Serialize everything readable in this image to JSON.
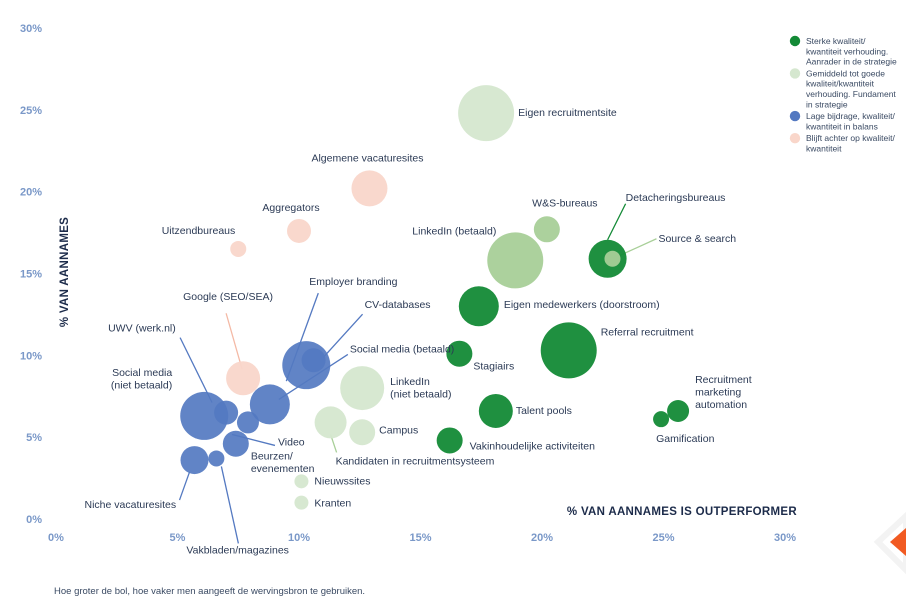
{
  "chart_data": {
    "type": "scatter",
    "xlabel": "% VAN AANNAMES IS OUTPERFORMER",
    "ylabel": "% VAN AANNAMES",
    "xlim": [
      0,
      30
    ],
    "ylim": [
      0,
      30
    ],
    "xticks": [
      "0%",
      "5%",
      "10%",
      "15%",
      "20%",
      "25%",
      "30%"
    ],
    "yticks": [
      "0%",
      "5%",
      "10%",
      "15%",
      "20%",
      "25%",
      "30%"
    ],
    "grid": false,
    "legend_position": "top-right",
    "footnote": "Hoe groter de bol, hoe vaker men aangeeft de wervingsbron te gebruiken.",
    "colors": {
      "strong": "#138a36",
      "average": "#d5e7cf",
      "average_mid": "#a8cf98",
      "low": "#5479c1",
      "behind": "#f9d6ca"
    },
    "legend": [
      {
        "group": "strong",
        "lines": [
          "Sterke kwaliteit/",
          "kwantiteit verhouding.",
          "Aanrader in de strategie"
        ]
      },
      {
        "group": "average",
        "lines": [
          "Gemiddeld tot goede",
          "kwaliteit/kwantiteit",
          "verhouding. Fundament",
          "in strategie"
        ]
      },
      {
        "group": "low",
        "lines": [
          "Lage bijdrage, kwaliteit/",
          "kwantiteit in balans"
        ]
      },
      {
        "group": "behind",
        "lines": [
          "Blijft achter op kwaliteit/",
          "kwantiteit"
        ]
      }
    ],
    "series": [
      {
        "name": "Eigen recruitmentsite",
        "x": 17.7,
        "y": 24.8,
        "size": 28,
        "group": "average"
      },
      {
        "name": "Algemene vacaturesites",
        "x": 12.9,
        "y": 20.2,
        "size": 18,
        "group": "behind"
      },
      {
        "name": "Aggregators",
        "x": 10.0,
        "y": 17.6,
        "size": 12,
        "group": "behind"
      },
      {
        "name": "Uitzendbureaus",
        "x": 7.5,
        "y": 16.5,
        "size": 8,
        "group": "behind"
      },
      {
        "name": "W&S-bureaus",
        "x": 20.2,
        "y": 17.7,
        "size": 13,
        "group": "average_mid"
      },
      {
        "name": "LinkedIn (betaald)",
        "x": 18.9,
        "y": 15.8,
        "size": 28,
        "group": "average_mid"
      },
      {
        "name": "Detacheringsbureaus",
        "x": 22.7,
        "y": 15.9,
        "size": 19,
        "group": "strong"
      },
      {
        "name": "Source & search",
        "x": 22.9,
        "y": 15.9,
        "size": 8,
        "group": "average_mid"
      },
      {
        "name": "Eigen medewerkers (doorstroom)",
        "x": 17.4,
        "y": 13.0,
        "size": 20,
        "group": "strong"
      },
      {
        "name": "Referral recruitment",
        "x": 21.1,
        "y": 10.3,
        "size": 28,
        "group": "strong"
      },
      {
        "name": "Stagiairs",
        "x": 16.6,
        "y": 10.1,
        "size": 13,
        "group": "strong"
      },
      {
        "name": "Recruitment marketing automation",
        "x": 25.6,
        "y": 6.6,
        "size": 11,
        "group": "strong"
      },
      {
        "name": "Gamification",
        "x": 24.9,
        "y": 6.1,
        "size": 8,
        "group": "strong"
      },
      {
        "name": "Talent pools",
        "x": 18.1,
        "y": 6.6,
        "size": 17,
        "group": "strong"
      },
      {
        "name": "Vakinhoudelijke activiteiten",
        "x": 16.2,
        "y": 4.8,
        "size": 13,
        "group": "strong"
      },
      {
        "name": "LinkedIn (niet betaald)",
        "x": 12.6,
        "y": 8.0,
        "size": 22,
        "group": "average"
      },
      {
        "name": "Campus",
        "x": 12.6,
        "y": 5.3,
        "size": 13,
        "group": "average"
      },
      {
        "name": "Kandidaten in recruitmentsysteem",
        "x": 11.3,
        "y": 5.9,
        "size": 16,
        "group": "average"
      },
      {
        "name": "Nieuwssites",
        "x": 10.1,
        "y": 2.3,
        "size": 7,
        "group": "average"
      },
      {
        "name": "Kranten",
        "x": 10.1,
        "y": 1.0,
        "size": 7,
        "group": "average"
      },
      {
        "name": "Google (SEO/SEA)",
        "x": 7.7,
        "y": 8.6,
        "size": 17,
        "group": "behind"
      },
      {
        "name": "Employer branding",
        "x": 10.3,
        "y": 9.4,
        "size": 24,
        "group": "low"
      },
      {
        "name": "CV-databases",
        "x": 10.6,
        "y": 9.7,
        "size": 12,
        "group": "low"
      },
      {
        "name": "UWV (werk.nl)",
        "x": 7.0,
        "y": 6.5,
        "size": 12,
        "group": "low"
      },
      {
        "name": "Social media (niet betaald)",
        "x": 6.1,
        "y": 6.3,
        "size": 24,
        "group": "low"
      },
      {
        "name": "Social media (betaald)",
        "x": 8.8,
        "y": 7.0,
        "size": 20,
        "group": "low"
      },
      {
        "name": "Video",
        "x": 7.9,
        "y": 5.9,
        "size": 11,
        "group": "low"
      },
      {
        "name": "Beurzen/ evenementen",
        "x": 7.4,
        "y": 4.6,
        "size": 13,
        "group": "low"
      },
      {
        "name": "Niche vacaturesites",
        "x": 5.7,
        "y": 3.6,
        "size": 14,
        "group": "low"
      },
      {
        "name": "Vakbladen/magazines",
        "x": 6.6,
        "y": 3.7,
        "size": 8,
        "group": "low"
      }
    ],
    "labels": [
      {
        "point": "Eigen recruitmentsite",
        "lines": [
          "Eigen recruitmentsite"
        ]
      },
      {
        "point": "Algemene vacaturesites",
        "lines": [
          "Algemene vacaturesites"
        ]
      },
      {
        "point": "Aggregators",
        "lines": [
          "Aggregators"
        ]
      },
      {
        "point": "Uitzendbureaus",
        "lines": [
          "Uitzendbureaus"
        ]
      },
      {
        "point": "W&S-bureaus",
        "lines": [
          "W&S-bureaus"
        ]
      },
      {
        "point": "LinkedIn (betaald)",
        "lines": [
          "LinkedIn (betaald)"
        ]
      },
      {
        "point": "Detacheringsbureaus",
        "lines": [
          "Detacheringsbureaus"
        ]
      },
      {
        "point": "Source & search",
        "lines": [
          "Source & search"
        ]
      },
      {
        "point": "Eigen medewerkers (doorstroom)",
        "lines": [
          "Eigen medewerkers (doorstroom)"
        ]
      },
      {
        "point": "Referral recruitment",
        "lines": [
          "Referral recruitment"
        ]
      },
      {
        "point": "Stagiairs",
        "lines": [
          "Stagiairs"
        ]
      },
      {
        "point": "Recruitment marketing automation",
        "lines": [
          "Recruitment",
          "marketing",
          "automation"
        ]
      },
      {
        "point": "Gamification",
        "lines": [
          "Gamification"
        ]
      },
      {
        "point": "Talent pools",
        "lines": [
          "Talent pools"
        ]
      },
      {
        "point": "Vakinhoudelijke activiteiten",
        "lines": [
          "Vakinhoudelijke activiteiten"
        ]
      },
      {
        "point": "LinkedIn (niet betaald)",
        "lines": [
          "LinkedIn",
          "(niet betaald)"
        ]
      },
      {
        "point": "Campus",
        "lines": [
          "Campus"
        ]
      },
      {
        "point": "Kandidaten in recruitmentsysteem",
        "lines": [
          "Kandidaten in recruitmentsysteem"
        ]
      },
      {
        "point": "Nieuwssites",
        "lines": [
          "Nieuwssites"
        ]
      },
      {
        "point": "Kranten",
        "lines": [
          "Kranten"
        ]
      },
      {
        "point": "Google (SEO/SEA)",
        "lines": [
          "Google (SEO/SEA)"
        ]
      },
      {
        "point": "Employer branding",
        "lines": [
          "Employer branding"
        ]
      },
      {
        "point": "CV-databases",
        "lines": [
          "CV-databases"
        ]
      },
      {
        "point": "UWV (werk.nl)",
        "lines": [
          "UWV (werk.nl)"
        ]
      },
      {
        "point": "Social media (niet betaald)",
        "lines": [
          "Social media",
          "(niet betaald)"
        ]
      },
      {
        "point": "Social media (betaald)",
        "lines": [
          "Social media (betaald)"
        ]
      },
      {
        "point": "Video",
        "lines": [
          "Video"
        ]
      },
      {
        "point": "Beurzen/ evenementen",
        "lines": [
          "Beurzen/",
          "evenementen"
        ]
      },
      {
        "point": "Niche vacaturesites",
        "lines": [
          "Niche vacaturesites"
        ]
      },
      {
        "point": "Vakbladen/magazines",
        "lines": [
          "Vakbladen/magazines"
        ]
      }
    ]
  }
}
